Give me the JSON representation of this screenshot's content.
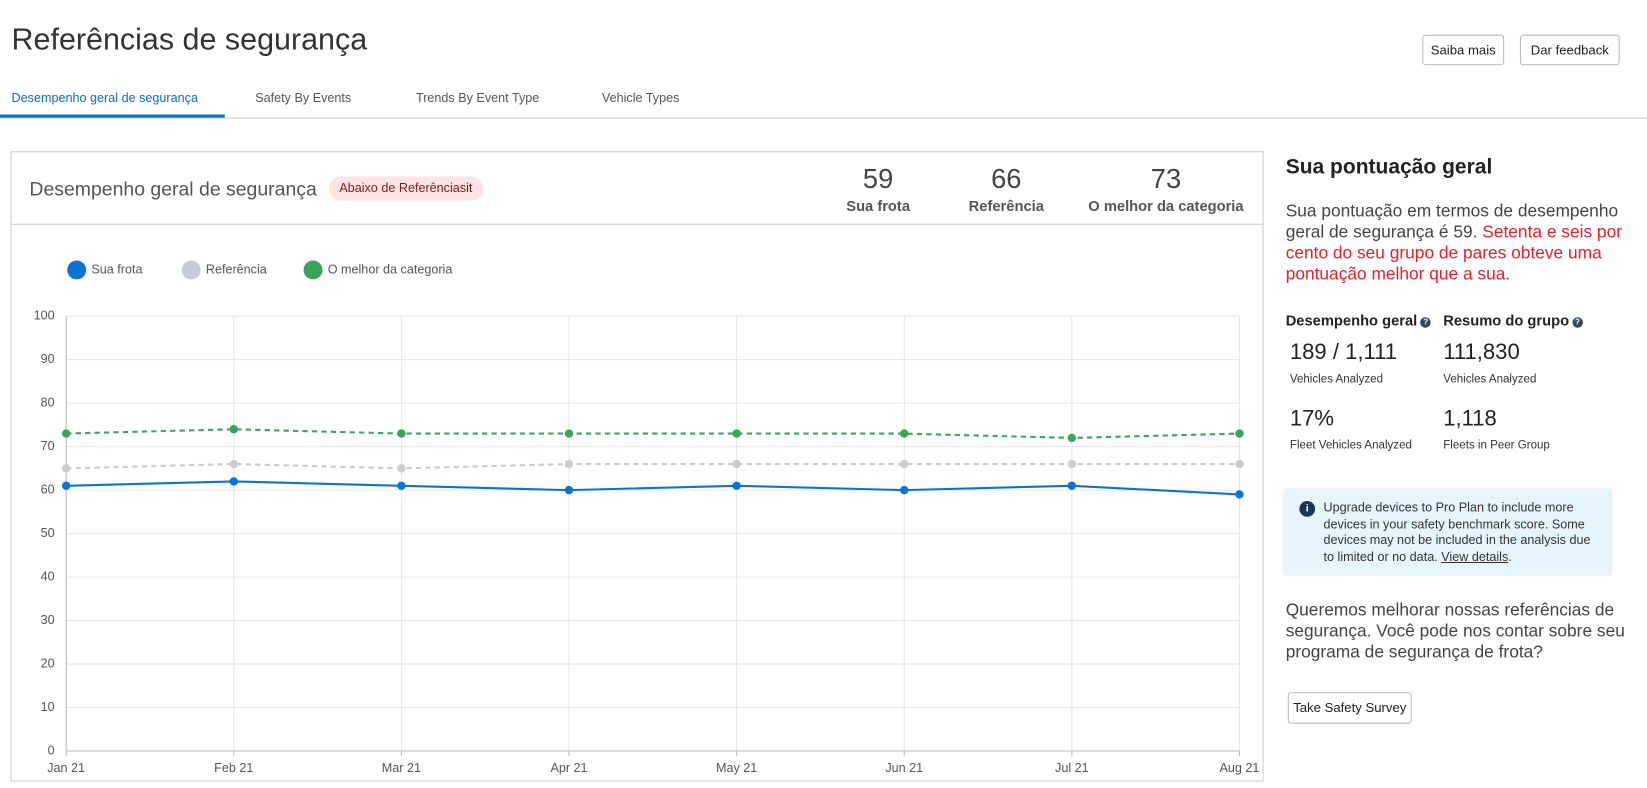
{
  "header": {
    "title": "Referências de segurança",
    "buttons": [
      "Saiba mais",
      "Dar feedback"
    ]
  },
  "tabs": [
    "Desempenho geral de segurança",
    "Safety By Events",
    "Trends By Event Type",
    "Vehicle Types"
  ],
  "card": {
    "title": "Desempenho geral de segurança",
    "badge": "Abaixo de Referênciasit",
    "stats": [
      {
        "value": 59,
        "label": "Sua frota"
      },
      {
        "value": 66,
        "label": "Referência"
      },
      {
        "value": 73,
        "label": "O melhor da categoria"
      }
    ]
  },
  "chart_data": {
    "type": "line",
    "categories": [
      "Jan 21",
      "Feb 21",
      "Mar 21",
      "Apr 21",
      "May 21",
      "Jun 21",
      "Jul 21",
      "Aug 21"
    ],
    "series": [
      {
        "name": "Sua frota",
        "color": "#0a74d0",
        "dashed": false,
        "values": [
          61,
          62,
          61,
          60,
          61,
          60,
          61,
          59
        ]
      },
      {
        "name": "Referência",
        "color": "#c8cbcf",
        "dashed": true,
        "values": [
          65,
          66,
          65,
          66,
          66,
          66,
          66,
          66
        ]
      },
      {
        "name": "O melhor da categoria",
        "color": "#3aa35f",
        "dashed": true,
        "values": [
          73,
          74,
          73,
          73,
          73,
          73,
          72,
          73
        ]
      }
    ],
    "ylim": [
      0,
      100
    ],
    "yticks": [
      0,
      10,
      20,
      30,
      40,
      50,
      60,
      70,
      80,
      90,
      100
    ],
    "grid": true,
    "legend": "top-left"
  },
  "sidebar": {
    "title": "Sua pontuação geral",
    "summary": "Sua pontuação em termos de desempenho geral de segurança é 59.",
    "summary_highlight": "Setenta e seis por cento do seu grupo de pares obteve uma pontuação melhor que a sua.",
    "columns": [
      {
        "heading": "Desempenho geral",
        "items": [
          {
            "value": "189 / 1,111",
            "label": "Vehicles Analyzed"
          },
          {
            "value": "17%",
            "label": "Fleet Vehicles Analyzed"
          }
        ]
      },
      {
        "heading": "Resumo do grupo",
        "items": [
          {
            "value": "111,830",
            "label": "Vehicles Analyzed"
          },
          {
            "value": "1,118",
            "label": "Fleets in Peer Group"
          }
        ]
      }
    ],
    "info": {
      "text": "Upgrade devices to Pro Plan to include more devices in your safety benchmark score. Some devices may not be included in the analysis due to limited or no data.",
      "link": "View details",
      "suffix": "."
    },
    "survey_text": "Queremos melhorar nossas referências de segurança. Você pode nos contar sobre seu programa de segurança de frota?",
    "survey_button": "Take Safety Survey"
  }
}
